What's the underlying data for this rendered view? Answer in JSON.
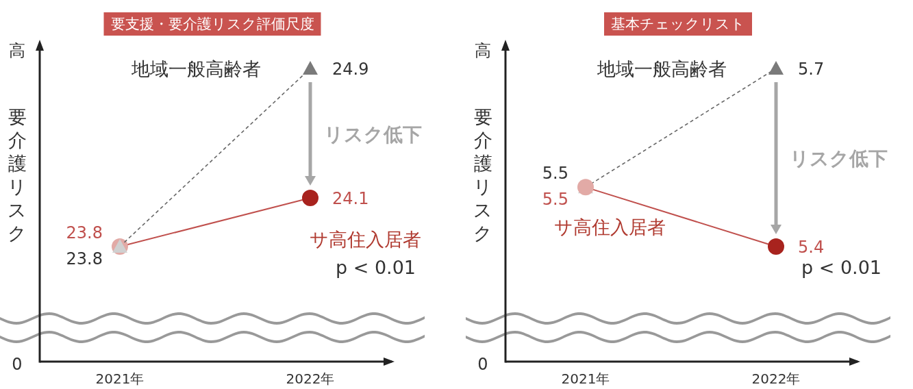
{
  "chart_data": [
    {
      "type": "line",
      "title": "要支援・要介護リスク評価尺度",
      "ylabel": "要介護リスク",
      "categories": [
        "2021年",
        "2022年"
      ],
      "data_labels": true,
      "series": [
        {
          "name": "サ高住入居者",
          "color": "#c0504d",
          "colors": [
            "#e2aaa6",
            "#a8231e"
          ],
          "values": [
            23.8,
            24.1
          ],
          "marker": "circle",
          "line_style": "solid"
        },
        {
          "name": "地域一般高齢者",
          "color": "#666666",
          "colors": [
            "#d0d0d0",
            "#7a7a7a"
          ],
          "values": [
            23.8,
            24.9
          ],
          "marker": "triangle",
          "line_style": "dashed"
        }
      ],
      "annotations": [
        "高",
        "0",
        "リスク低下",
        "p < 0.01"
      ]
    },
    {
      "type": "line",
      "title": "基本チェックリスト",
      "ylabel": "要介護リスク",
      "categories": [
        "2021年",
        "2022年"
      ],
      "data_labels": true,
      "series": [
        {
          "name": "地域一般高齢者",
          "color": "#666666",
          "colors": [
            "#d0d0d0",
            "#7a7a7a"
          ],
          "values": [
            5.5,
            5.7
          ],
          "marker": "triangle",
          "line_style": "dashed"
        },
        {
          "name": "サ高住入居者",
          "color": "#c0504d",
          "colors": [
            "#e2aaa6",
            "#a8231e"
          ],
          "values": [
            5.5,
            5.4
          ],
          "marker": "circle",
          "line_style": "solid"
        }
      ],
      "annotations": [
        "高",
        "0",
        "リスク低下",
        "p < 0.01"
      ]
    }
  ]
}
